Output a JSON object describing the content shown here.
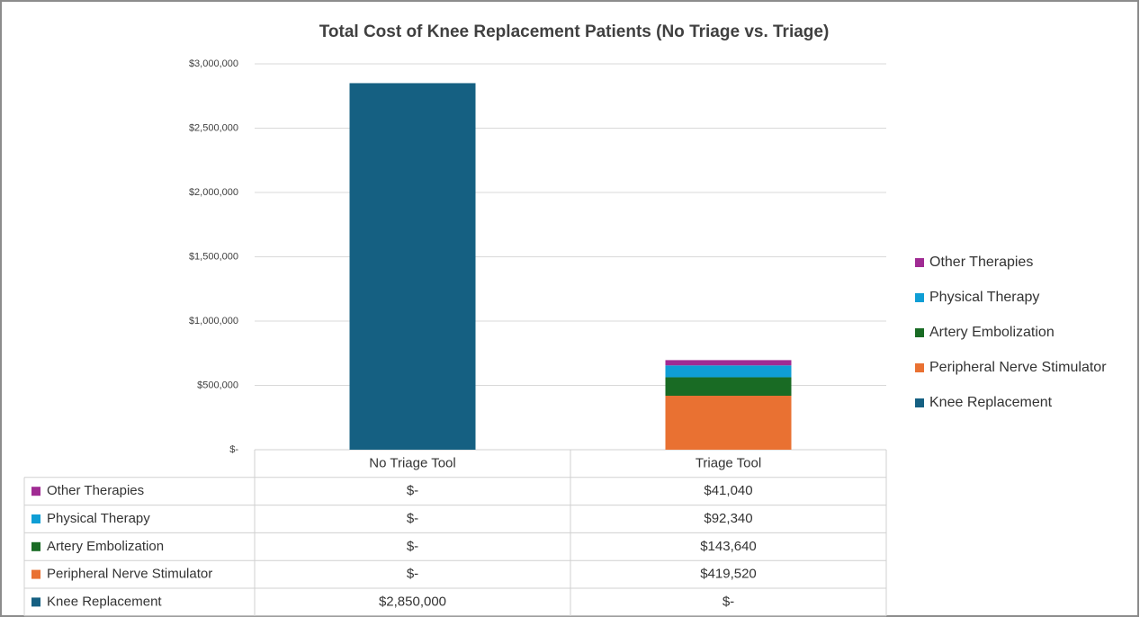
{
  "chart_data": {
    "type": "stacked_bar",
    "title": "Total Cost of Knee Replacement Patients (No Triage vs. Triage)",
    "categories": [
      "No Triage Tool",
      "Triage Tool"
    ],
    "series": [
      {
        "name": "Knee Replacement",
        "color": "#156082",
        "values": [
          2850000,
          0
        ],
        "value_labels": [
          "$2,850,000",
          "$-"
        ]
      },
      {
        "name": "Peripheral Nerve Stimulator",
        "color": "#e97132",
        "values": [
          0,
          419520
        ],
        "value_labels": [
          "$-",
          "$419,520"
        ]
      },
      {
        "name": "Artery Embolization",
        "color": "#196b24",
        "values": [
          0,
          143640
        ],
        "value_labels": [
          "$-",
          "$143,640"
        ]
      },
      {
        "name": "Physical Therapy",
        "color": "#0f9ed5",
        "values": [
          0,
          92340
        ],
        "value_labels": [
          "$-",
          "$92,340"
        ]
      },
      {
        "name": "Other Therapies",
        "color": "#a02b93",
        "values": [
          0,
          41040
        ],
        "value_labels": [
          "$-",
          "$41,040"
        ]
      }
    ],
    "ylim": [
      0,
      3000000
    ],
    "yticks": [
      {
        "value": 0,
        "label": "$-"
      },
      {
        "value": 500000,
        "label": "$500,000"
      },
      {
        "value": 1000000,
        "label": "$1,000,000"
      },
      {
        "value": 1500000,
        "label": "$1,500,000"
      },
      {
        "value": 2000000,
        "label": "$2,000,000"
      },
      {
        "value": 2500000,
        "label": "$2,500,000"
      },
      {
        "value": 3000000,
        "label": "$3,000,000"
      }
    ],
    "grid": true,
    "legend": "right"
  }
}
